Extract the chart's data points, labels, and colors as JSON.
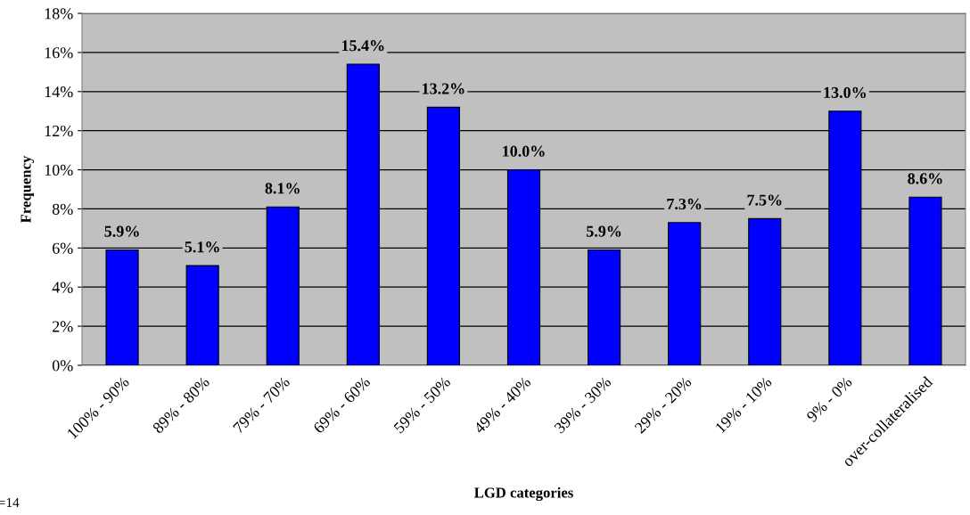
{
  "chart_data": {
    "type": "bar",
    "xlabel": "LGD categories",
    "ylabel": "Frequency",
    "categories": [
      "100% - 90%",
      "89% - 80%",
      "79% - 70%",
      "69% - 60%",
      "59% - 50%",
      "49% - 40%",
      "39% - 30%",
      "29% - 20%",
      "19% - 10%",
      "9% - 0%",
      "over-collateralised"
    ],
    "values": [
      5.9,
      5.1,
      8.1,
      15.4,
      13.2,
      10.0,
      5.9,
      7.3,
      7.5,
      13.0,
      8.6
    ],
    "value_labels": [
      "5.9%",
      "5.1%",
      "8.1%",
      "15.4%",
      "13.2%",
      "10.0%",
      "5.9%",
      "7.3%",
      "7.5%",
      "13.0%",
      "8.6%"
    ],
    "color": "#0000ff",
    "ylim": [
      0,
      18
    ],
    "yticks": [
      {
        "value": 0,
        "label": "0%"
      },
      {
        "value": 2,
        "label": "2%"
      },
      {
        "value": 4,
        "label": "4%"
      },
      {
        "value": 6,
        "label": "6%"
      },
      {
        "value": 8,
        "label": "8%"
      },
      {
        "value": 10,
        "label": "10%"
      },
      {
        "value": 12,
        "label": "12%"
      },
      {
        "value": 14,
        "label": "14%"
      },
      {
        "value": 16,
        "label": "16%"
      },
      {
        "value": 18,
        "label": "18%"
      }
    ],
    "grid": "y",
    "legend": false,
    "annotations": [
      "=14"
    ]
  }
}
